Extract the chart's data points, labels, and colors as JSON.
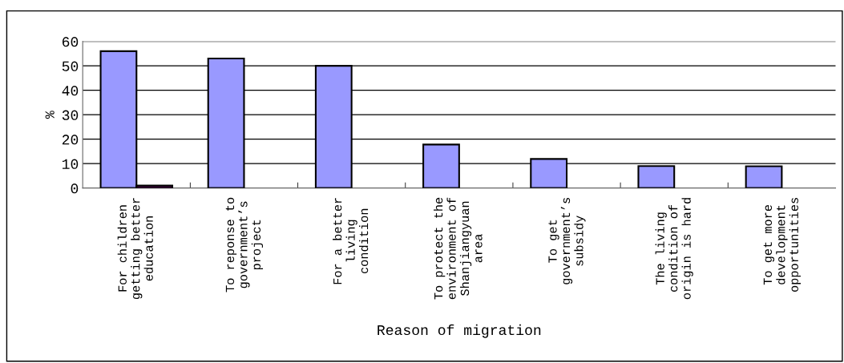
{
  "chart_data": {
    "type": "bar",
    "xlabel": "Reason of migration",
    "ylabel": "%",
    "categories": [
      "For children\ngetting better\neducation",
      "To reponse to\ngovernment’s\nproject",
      "For a better\nliving\ncondition",
      "To protect the\nenvironment of\nShanjiangyuan\narea",
      "To get\ngovernment’s\nsubsidy",
      "The living\ncondition of\norigin is hard",
      "To get more\ndevelopment\nopportunities"
    ],
    "series": [
      {
        "color": "#9999ff",
        "values": [
          56,
          53,
          50,
          17.8,
          11.9,
          9,
          8.9
        ]
      },
      {
        "color": "#660066",
        "values": [
          1,
          null,
          null,
          null,
          null,
          null,
          null
        ]
      }
    ],
    "ylim": [
      0,
      60
    ],
    "yticks": [
      0,
      10,
      20,
      30,
      40,
      50,
      60
    ],
    "grid": "y",
    "legend": false
  }
}
